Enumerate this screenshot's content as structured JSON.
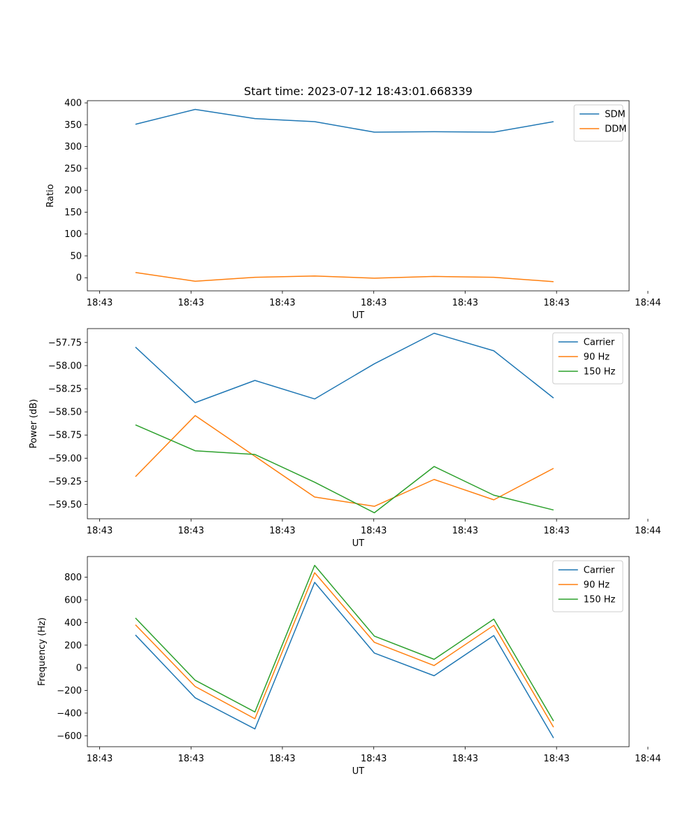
{
  "figure_title": "Start time: 2023-07-12 18:43:01.668339",
  "chart_data": [
    {
      "type": "line",
      "title": "Start time: 2023-07-12 18:43:01.668339",
      "xlabel": "UT",
      "ylabel": "Ratio",
      "x": [
        1,
        2,
        3,
        4,
        5,
        6,
        7,
        8
      ],
      "xlim": [
        0.195,
        9.265
      ],
      "ylim": [
        -30,
        405
      ],
      "xticks": [
        0.4,
        1.93,
        3.46,
        4.99,
        6.52,
        8.05,
        9.58
      ],
      "xtick_labels": [
        "18:43",
        "18:43",
        "18:43",
        "18:43",
        "18:43",
        "18:43",
        "18:44"
      ],
      "yticks": [
        0,
        50,
        100,
        150,
        200,
        250,
        300,
        350,
        400
      ],
      "ytick_labels": [
        "0",
        "50",
        "100",
        "150",
        "200",
        "250",
        "300",
        "350",
        "400"
      ],
      "legend_position": "top-right",
      "series": [
        {
          "name": "SDM",
          "color": "#1f77b4",
          "values": [
            351,
            385,
            364,
            357,
            333,
            334,
            333,
            357
          ]
        },
        {
          "name": "DDM",
          "color": "#ff7f0e",
          "values": [
            12,
            -8,
            1,
            4,
            -1,
            3,
            1,
            -9
          ]
        }
      ]
    },
    {
      "type": "line",
      "title": "",
      "xlabel": "UT",
      "ylabel": "Power (dB)",
      "x": [
        1,
        2,
        3,
        4,
        5,
        6,
        7,
        8
      ],
      "xlim": [
        0.195,
        9.265
      ],
      "ylim": [
        -59.655,
        -57.6
      ],
      "xticks": [
        0.4,
        1.93,
        3.46,
        4.99,
        6.52,
        8.05,
        9.58
      ],
      "xtick_labels": [
        "18:43",
        "18:43",
        "18:43",
        "18:43",
        "18:43",
        "18:43",
        "18:44"
      ],
      "yticks": [
        -59.5,
        -59.25,
        -59.0,
        -58.75,
        -58.5,
        -58.25,
        -58.0,
        -57.75
      ],
      "ytick_labels": [
        "−59.50",
        "−59.25",
        "−59.00",
        "−58.75",
        "−58.50",
        "−58.25",
        "−58.00",
        "−57.75"
      ],
      "legend_position": "top-right",
      "series": [
        {
          "name": "Carrier",
          "color": "#1f77b4",
          "values": [
            -57.8,
            -58.4,
            -58.16,
            -58.36,
            -57.98,
            -57.65,
            -57.84,
            -58.35
          ]
        },
        {
          "name": "90 Hz",
          "color": "#ff7f0e",
          "values": [
            -59.2,
            -58.54,
            -58.98,
            -59.42,
            -59.52,
            -59.23,
            -59.45,
            -59.11
          ]
        },
        {
          "name": "150 Hz",
          "color": "#2ca02c",
          "values": [
            -58.64,
            -58.92,
            -58.96,
            -59.26,
            -59.59,
            -59.09,
            -59.4,
            -59.56
          ]
        }
      ]
    },
    {
      "type": "line",
      "title": "",
      "xlabel": "UT",
      "ylabel": "Frequency (Hz)",
      "x": [
        1,
        2,
        3,
        4,
        5,
        6,
        7,
        8
      ],
      "xlim": [
        0.195,
        9.265
      ],
      "ylim": [
        -697,
        983
      ],
      "xticks": [
        0.4,
        1.93,
        3.46,
        4.99,
        6.52,
        8.05,
        9.58
      ],
      "xtick_labels": [
        "18:43",
        "18:43",
        "18:43",
        "18:43",
        "18:43",
        "18:43",
        "18:44"
      ],
      "yticks": [
        -600,
        -400,
        -200,
        0,
        200,
        400,
        600,
        800
      ],
      "ytick_labels": [
        "−600",
        "−400",
        "−200",
        "0",
        "200",
        "400",
        "600",
        "800"
      ],
      "legend_position": "top-right",
      "series": [
        {
          "name": "Carrier",
          "color": "#1f77b4",
          "values": [
            290,
            -265,
            -540,
            755,
            130,
            -70,
            285,
            -620
          ]
        },
        {
          "name": "90 Hz",
          "color": "#ff7f0e",
          "values": [
            380,
            -165,
            -450,
            840,
            225,
            20,
            375,
            -525
          ]
        },
        {
          "name": "150 Hz",
          "color": "#2ca02c",
          "values": [
            440,
            -110,
            -390,
            905,
            280,
            75,
            430,
            -470
          ]
        }
      ]
    }
  ]
}
